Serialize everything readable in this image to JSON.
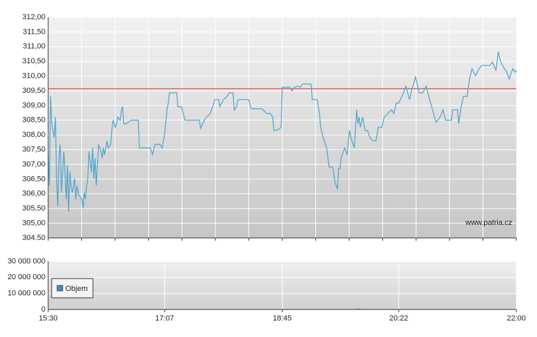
{
  "chart_data": [
    {
      "type": "line",
      "annotation": "www.patria.cz",
      "x": [
        930,
        931,
        932,
        933,
        935,
        936,
        937,
        938,
        939,
        940,
        941,
        943,
        944,
        945,
        946,
        947,
        948,
        949,
        950,
        952,
        953,
        954,
        955,
        956,
        958,
        959,
        960,
        961,
        962,
        963,
        964,
        966,
        967,
        968,
        969,
        970,
        971,
        972,
        974,
        975,
        976,
        977,
        978,
        979,
        980,
        982,
        983,
        984,
        985,
        986,
        987,
        988,
        990,
        991,
        992,
        993,
        995,
        999,
        1005,
        1006,
        1010,
        1015,
        1017,
        1019,
        1023,
        1025,
        1027,
        1029,
        1030,
        1031,
        1037,
        1038,
        1041,
        1044,
        1050,
        1056,
        1057,
        1060,
        1062,
        1065,
        1069,
        1072,
        1073,
        1076,
        1079,
        1081,
        1084,
        1085,
        1087,
        1088,
        1097,
        1099,
        1108,
        1112,
        1115,
        1117,
        1118,
        1122,
        1124,
        1125,
        1131,
        1133,
        1135,
        1138,
        1140,
        1142,
        1146,
        1149,
        1150,
        1154,
        1156,
        1157,
        1159,
        1162,
        1164,
        1167,
        1169,
        1171,
        1172,
        1173,
        1174,
        1177,
        1179,
        1181,
        1183,
        1185,
        1187,
        1188,
        1189,
        1190,
        1192,
        1194,
        1196,
        1198,
        1201,
        1203,
        1205,
        1208,
        1210,
        1213,
        1216,
        1218,
        1220,
        1222,
        1226,
        1228,
        1231,
        1233,
        1236,
        1239,
        1242,
        1245,
        1247,
        1249,
        1251,
        1253,
        1256,
        1259,
        1261,
        1266,
        1267,
        1271,
        1272,
        1274,
        1276,
        1279,
        1281,
        1283,
        1286,
        1289,
        1291,
        1294,
        1298,
        1300,
        1303,
        1305,
        1307,
        1310,
        1312,
        1314,
        1317,
        1319,
        1320
      ],
      "series": [
        {
          "color": "#4aa3cc",
          "values": [
            307.33,
            306.28,
            309.31,
            308.38,
            307.91,
            308.61,
            306.51,
            305.58,
            307.21,
            307.68,
            306.04,
            307.44,
            306.74,
            305.81,
            306.98,
            305.39,
            306.74,
            306.28,
            306.04,
            306.51,
            305.81,
            306.28,
            306.04,
            305.93,
            305.81,
            305.51,
            306.04,
            305.81,
            306.28,
            306.51,
            307.44,
            306.74,
            307.56,
            306.51,
            307.21,
            306.28,
            306.98,
            307.68,
            307.44,
            307.21,
            307.56,
            307.33,
            307.56,
            307.8,
            307.56,
            307.68,
            308.15,
            308.5,
            308.38,
            308.26,
            308.38,
            308.61,
            308.5,
            308.85,
            308.96,
            308.38,
            308.38,
            308.5,
            308.5,
            307.56,
            307.56,
            307.56,
            307.33,
            307.68,
            307.68,
            307.56,
            308.03,
            308.85,
            309.08,
            309.43,
            309.43,
            308.96,
            308.96,
            308.5,
            308.5,
            308.5,
            308.22,
            308.5,
            308.61,
            308.73,
            309.2,
            309.2,
            308.96,
            309.2,
            309.31,
            309.43,
            309.43,
            308.85,
            308.96,
            309.2,
            309.2,
            308.89,
            308.89,
            308.73,
            308.73,
            308.61,
            308.15,
            308.19,
            308.26,
            309.62,
            309.62,
            309.5,
            309.62,
            309.66,
            309.62,
            309.73,
            309.73,
            309.73,
            309.2,
            309.2,
            308.73,
            308.26,
            307.91,
            307.56,
            306.91,
            306.91,
            306.39,
            306.16,
            306.86,
            306.86,
            307.21,
            307.56,
            307.33,
            308.15,
            307.8,
            307.56,
            308.85,
            308.38,
            308.61,
            308.26,
            308.61,
            308.15,
            308.15,
            307.91,
            307.8,
            307.8,
            308.26,
            308.26,
            308.61,
            308.73,
            308.85,
            308.73,
            309.08,
            309.08,
            309.43,
            309.66,
            309.2,
            309.55,
            309.97,
            309.43,
            309.43,
            309.66,
            309.31,
            309.03,
            308.73,
            308.43,
            308.57,
            308.85,
            308.5,
            308.5,
            308.85,
            308.85,
            308.38,
            308.96,
            309.31,
            309.31,
            309.9,
            310.25,
            310.01,
            310.25,
            310.36,
            310.36,
            310.36,
            310.48,
            310.2,
            310.83,
            310.48,
            310.25,
            310.13,
            309.9,
            310.25,
            310.13,
            310.2
          ]
        }
      ],
      "xlim": [
        930,
        1320
      ],
      "ylim": [
        304.5,
        312
      ],
      "yticks": [
        {
          "value": 312,
          "label": "312,00"
        },
        {
          "value": 311.5,
          "label": "311,50"
        },
        {
          "value": 311,
          "label": "311,00"
        },
        {
          "value": 310.5,
          "label": "310,50"
        },
        {
          "value": 310,
          "label": "310,00"
        },
        {
          "value": 309.5,
          "label": "309,50"
        },
        {
          "value": 309,
          "label": "309,00"
        },
        {
          "value": 308.5,
          "label": "308,50"
        },
        {
          "value": 308,
          "label": "308,00"
        },
        {
          "value": 307.5,
          "label": "307,50"
        },
        {
          "value": 307,
          "label": "307,00"
        },
        {
          "value": 306.5,
          "label": "306,50"
        },
        {
          "value": 306,
          "label": "306,00"
        },
        {
          "value": 305.5,
          "label": "305,50"
        },
        {
          "value": 305,
          "label": "305,00"
        },
        {
          "value": 304.5,
          "label": "304.50"
        }
      ],
      "reference_line": {
        "value": 309.57,
        "color": "#e06060"
      },
      "grid": true
    },
    {
      "type": "bar",
      "x": [
        1187,
        1189,
        1191
      ],
      "series": [
        {
          "name": "Objem",
          "color": "#3a8fc4",
          "values": [
            500000,
            700000,
            400000
          ]
        }
      ],
      "xlim": [
        930,
        1320
      ],
      "xticks": [
        {
          "value": 930,
          "label": "15:30"
        },
        {
          "value": 1027,
          "label": "17:07"
        },
        {
          "value": 1125,
          "label": "18:45"
        },
        {
          "value": 1222,
          "label": "20:22"
        },
        {
          "value": 1320,
          "label": "22:00"
        }
      ],
      "ylim": [
        0,
        30000000
      ],
      "yticks": [
        {
          "value": 30000000,
          "label": "30 000 000"
        },
        {
          "value": 20000000,
          "label": "20 000 000"
        },
        {
          "value": 10000000,
          "label": "10 000 000"
        },
        0
      ],
      "legend": "lower left",
      "grid": true
    }
  ]
}
